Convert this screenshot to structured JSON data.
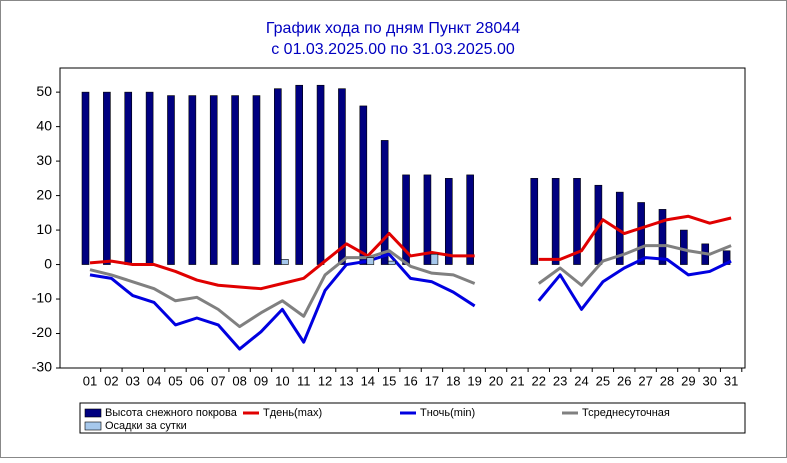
{
  "chart_data": {
    "type": "combo",
    "title": "График хода по дням  Пункт 28044",
    "subtitle": "с 01.03.2025.00 по 31.03.2025.00",
    "categories": [
      "01",
      "02",
      "03",
      "04",
      "05",
      "06",
      "07",
      "08",
      "09",
      "10",
      "11",
      "12",
      "13",
      "14",
      "15",
      "16",
      "17",
      "18",
      "19",
      "20",
      "21",
      "22",
      "23",
      "24",
      "25",
      "26",
      "27",
      "28",
      "29",
      "30",
      "31"
    ],
    "ylim": [
      -30,
      57
    ],
    "yticks": [
      -30,
      -20,
      -10,
      0,
      10,
      20,
      30,
      40,
      50
    ],
    "grid": false,
    "series": [
      {
        "name": "Высота снежного покрова",
        "type": "bar",
        "color": "#000080",
        "values": [
          50,
          50,
          50,
          50,
          49,
          49,
          49,
          49,
          49,
          51,
          52,
          52,
          51,
          46,
          36,
          26,
          26,
          25,
          26,
          null,
          null,
          25,
          25,
          25,
          23,
          21,
          18,
          16,
          10,
          6,
          4
        ]
      },
      {
        "name": "Тдень(max)",
        "type": "line",
        "color": "#e00000",
        "values": [
          0.5,
          1,
          0,
          0,
          -2,
          -4.5,
          -6,
          -6.5,
          -7,
          -5.5,
          -4,
          1,
          6,
          2.5,
          9,
          2.5,
          3.5,
          2.5,
          2.5,
          null,
          null,
          1.5,
          1.5,
          4,
          13,
          9,
          11,
          13,
          14,
          12,
          13.5
        ]
      },
      {
        "name": "Тночь(min)",
        "type": "line",
        "color": "#0000e0",
        "values": [
          -3,
          -4,
          -9,
          -11,
          -17.5,
          -15.5,
          -17.5,
          -24.5,
          -19.5,
          -13,
          -22.5,
          -7.5,
          0,
          1,
          3,
          -4,
          -5,
          -8,
          -12,
          null,
          null,
          -10.5,
          -3,
          -13,
          -5,
          -1,
          2,
          1.5,
          -3,
          -2,
          1
        ]
      },
      {
        "name": "Тсреднесуточная",
        "type": "line",
        "color": "#808080",
        "values": [
          -1.5,
          -3,
          -5,
          -7,
          -10.5,
          -9.5,
          -13,
          -18,
          -14,
          -10.5,
          -15,
          -3,
          2,
          2,
          4,
          -0.5,
          -2.5,
          -3,
          -5.5,
          null,
          null,
          -5.5,
          -1,
          -6,
          1,
          3,
          5.5,
          5.5,
          4,
          3,
          5.5
        ]
      },
      {
        "name": "Осадки за сутки",
        "type": "bar",
        "color": "#a6c8ec",
        "values": [
          0,
          0,
          0,
          0,
          0,
          0,
          0,
          0,
          0,
          1.5,
          0,
          0,
          0,
          2,
          1,
          0,
          3,
          0,
          0,
          null,
          null,
          0,
          0,
          0,
          0,
          0,
          0,
          0,
          0,
          0,
          0
        ]
      }
    ]
  }
}
